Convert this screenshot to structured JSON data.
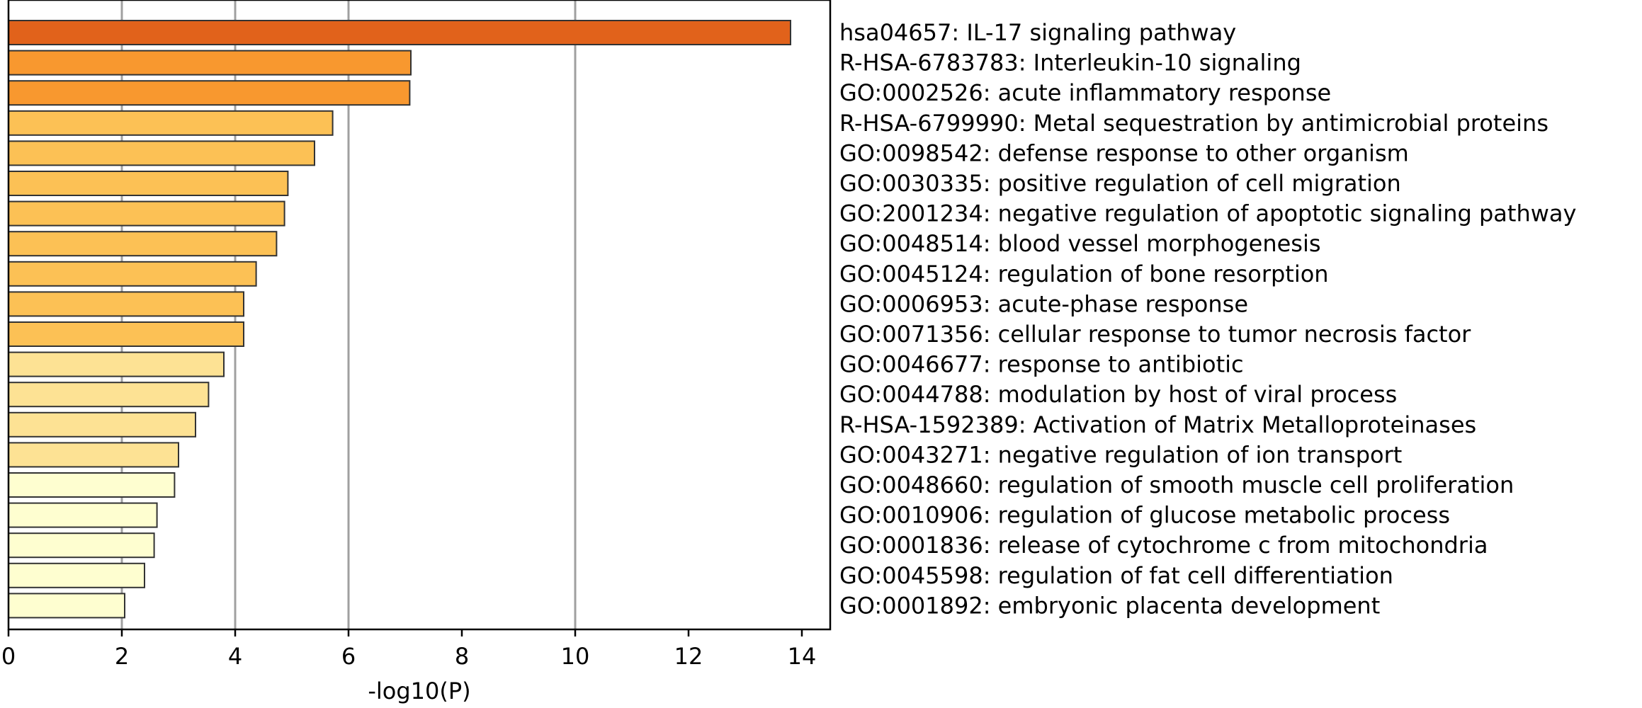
{
  "chart_data": {
    "type": "bar",
    "orientation": "horizontal",
    "categories": [
      "hsa04657: IL-17 signaling pathway",
      "R-HSA-6783783: Interleukin-10 signaling",
      "GO:0002526: acute inflammatory response",
      "R-HSA-6799990: Metal sequestration by antimicrobial proteins",
      "GO:0098542: defense response to other organism",
      "GO:0030335: positive regulation of cell migration",
      "GO:2001234: negative regulation of apoptotic signaling pathway",
      "GO:0048514: blood vessel morphogenesis",
      "GO:0045124: regulation of bone resorption",
      "GO:0006953: acute-phase response",
      "GO:0071356: cellular response to tumor necrosis factor",
      "GO:0046677: response to antibiotic",
      "GO:0044788: modulation by host of viral process",
      "R-HSA-1592389: Activation of Matrix Metalloproteinases",
      "GO:0043271: negative regulation of ion transport",
      "GO:0048660: regulation of smooth muscle cell proliferation",
      "GO:0010906: regulation of glucose metabolic process",
      "GO:0001836: release of cytochrome c from mitochondria",
      "GO:0045598: regulation of fat cell differentiation",
      "GO:0001892: embryonic placenta development"
    ],
    "values": [
      13.8,
      7.1,
      7.08,
      5.72,
      5.4,
      4.93,
      4.87,
      4.73,
      4.37,
      4.15,
      4.15,
      3.8,
      3.53,
      3.3,
      3.0,
      2.93,
      2.62,
      2.57,
      2.4,
      2.05
    ],
    "bar_colors": [
      "#e1621b",
      "#f8982f",
      "#f8982f",
      "#fcc155",
      "#fcc155",
      "#fcc155",
      "#fcc155",
      "#fcc155",
      "#fcc155",
      "#fcc155",
      "#fcc155",
      "#fde294",
      "#fde294",
      "#fde294",
      "#fde294",
      "#fefed0",
      "#fefed0",
      "#fefed0",
      "#fefed0",
      "#fefed0"
    ],
    "bar_edge_color": "#333333",
    "xlabel": "-log10(P)",
    "ylabel": "",
    "title": "",
    "xlim": [
      0,
      14.5
    ],
    "xticks": [
      0,
      2,
      4,
      6,
      8,
      10,
      12,
      14
    ],
    "xtick_labels": [
      "0",
      "2",
      "4",
      "6",
      "8",
      "10",
      "12",
      "14"
    ],
    "grid": "vertical",
    "gridlines_at": [
      2,
      4,
      6,
      10
    ],
    "grid_color": "#a0a0a0"
  }
}
